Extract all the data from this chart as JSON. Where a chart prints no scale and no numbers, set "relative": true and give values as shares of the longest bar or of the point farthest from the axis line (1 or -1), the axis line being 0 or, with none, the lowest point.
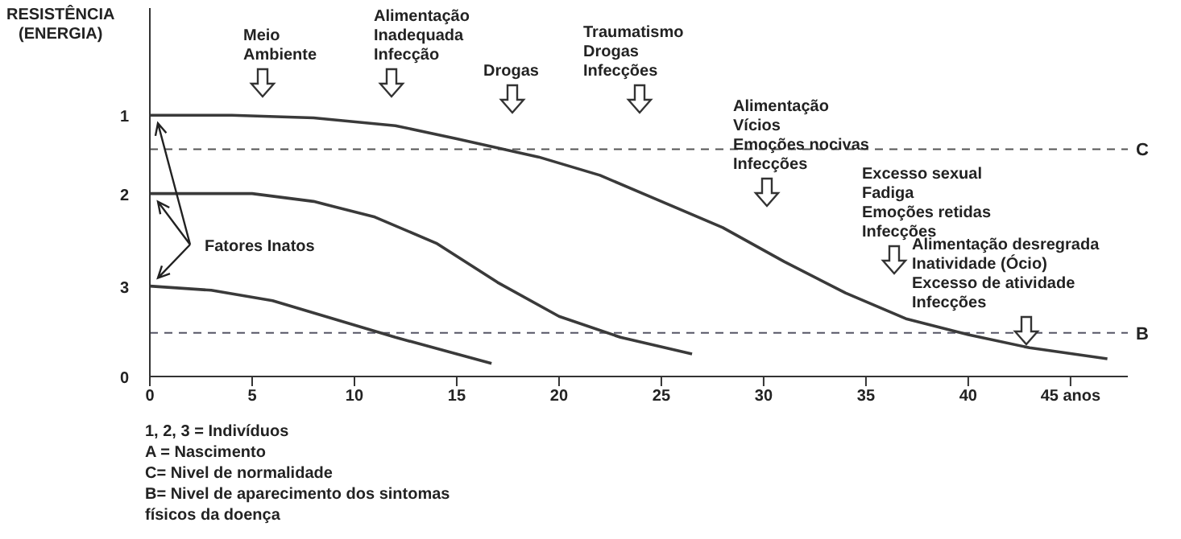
{
  "chart_data": {
    "type": "line",
    "ylabel": "RESISTÊNCIA\n(ENERGIA)",
    "relative": true,
    "xlim": [
      0,
      47.8
    ],
    "xticks": [
      0,
      5,
      10,
      15,
      20,
      25,
      30,
      35,
      40,
      {
        "value": 45,
        "label": "45 anos"
      }
    ],
    "series": [
      {
        "name": "1",
        "color": "#3a3a3a",
        "x": [
          0,
          4,
          8,
          12,
          15,
          19,
          22,
          25,
          28,
          31,
          34,
          37,
          40,
          43,
          46.8
        ],
        "values": [
          1.0,
          1.0,
          0.99,
          0.96,
          0.91,
          0.84,
          0.77,
          0.67,
          0.57,
          0.44,
          0.32,
          0.22,
          0.16,
          0.11,
          0.068
        ]
      },
      {
        "name": "2",
        "color": "#3a3a3a",
        "x": [
          0,
          5,
          8,
          11,
          14,
          17,
          20,
          23,
          26.5
        ],
        "values": [
          0.7,
          0.7,
          0.67,
          0.61,
          0.51,
          0.36,
          0.23,
          0.15,
          0.086
        ]
      },
      {
        "name": "3",
        "color": "#3a3a3a",
        "x": [
          0,
          3,
          6,
          9,
          12,
          15,
          16.7
        ],
        "values": [
          0.346,
          0.33,
          0.29,
          0.22,
          0.15,
          0.086,
          0.05
        ]
      }
    ],
    "ref_lines": [
      {
        "axis": "y",
        "value": 0.87,
        "label": "C",
        "color": "#555555",
        "line_style": "dashed"
      },
      {
        "axis": "y",
        "value": 0.167,
        "label": "B",
        "color": "#555566",
        "line_style": "dashed"
      }
    ],
    "annotations": [
      "Meio\nAmbiente",
      "Alimentação\nInadequada\nInfecção",
      "Drogas",
      "Traumatismo\nDrogas\nInfecções",
      "Alimentação\nVícios\nEmoções nocivas\nInfecções",
      "Excesso sexual\nFadiga\nEmoções retidas\nInfecções",
      "Alimentação desregrada\nInatividade (Ócio)\nExcesso de atividade\nInfecções",
      "Fatores Inatos",
      "0",
      "1, 2, 3 = Indivíduos",
      "A = Nascimento",
      "C= Nivel de normalidade",
      "B= Nivel de aparecimento dos sintomas\nfísicos da doença"
    ]
  }
}
